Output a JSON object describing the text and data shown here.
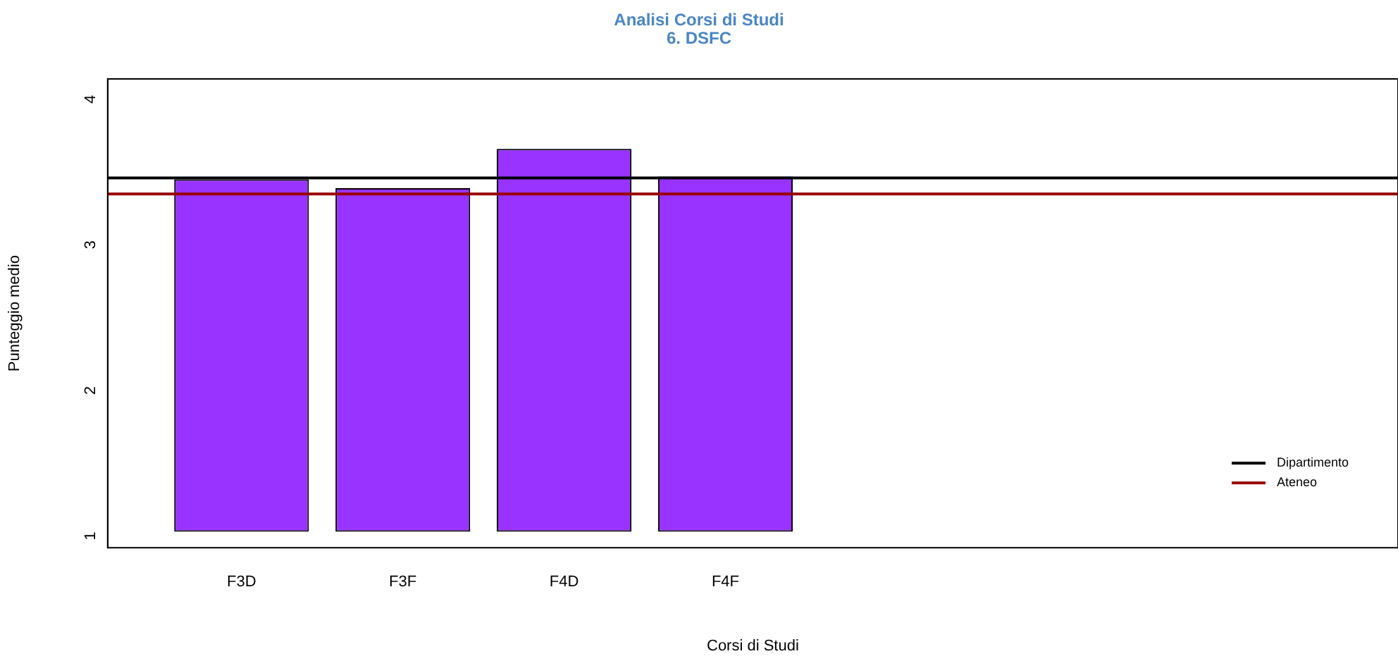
{
  "chart_data": {
    "type": "bar",
    "title": "Analisi Corsi di Studi",
    "subtitle": "6. DSFC",
    "xlabel": "Corsi di Studi",
    "ylabel": "Punteggio medio",
    "categories": [
      "F3D",
      "F3F",
      "F4D",
      "F4F"
    ],
    "base": [
      1,
      1,
      1,
      1
    ],
    "values": [
      2.42,
      2.36,
      2.63,
      2.44
    ],
    "color": "#9933ff",
    "ylim": [
      0.89,
      4.11
    ],
    "yticks": [
      1,
      2,
      3,
      4
    ],
    "grid": false,
    "ref_lines": [
      {
        "axis": "y",
        "value": 3.43,
        "label": "Dipartimento",
        "color": "#000000"
      },
      {
        "axis": "y",
        "value": 3.32,
        "label": "Ateneo",
        "color": "#990000"
      }
    ],
    "legend": "bottom right"
  }
}
